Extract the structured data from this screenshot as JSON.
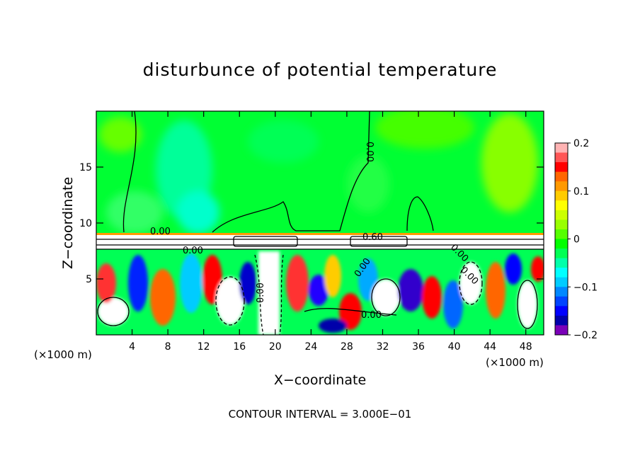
{
  "chart_data": {
    "type": "heatmap",
    "title": "disturbunce of potential temperature",
    "xlabel": "X−coordinate",
    "ylabel": "Z−coordinate",
    "x_unit": "(×1000 m)",
    "x_unit_right": "(×1000 m)",
    "footer": "CONTOUR INTERVAL = 3.000E−01",
    "x_ticks": [
      "4",
      "8",
      "12",
      "16",
      "20",
      "24",
      "28",
      "32",
      "36",
      "40",
      "44",
      "48"
    ],
    "x_tick_values": [
      4,
      8,
      12,
      16,
      20,
      24,
      28,
      32,
      36,
      40,
      44,
      48
    ],
    "y_ticks": [
      "5",
      "10",
      "15"
    ],
    "y_tick_values": [
      5,
      10,
      15
    ],
    "xlim": [
      0,
      50
    ],
    "ylim": [
      0,
      20
    ],
    "colorbar": {
      "ticks": [
        "0.2",
        "0.1",
        "0",
        "−0.1",
        "−0.2"
      ],
      "tick_values": [
        0.2,
        0.1,
        0,
        -0.1,
        -0.2
      ],
      "range": [
        -0.2,
        0.2
      ],
      "colors": [
        "#ffb3b3",
        "#ff5555",
        "#ff0000",
        "#ff6600",
        "#ff9900",
        "#ffcc00",
        "#ffff00",
        "#ccff00",
        "#99ff00",
        "#55ff00",
        "#00ff00",
        "#00ff55",
        "#00ffaa",
        "#00ffff",
        "#00ccff",
        "#0088ff",
        "#0044ff",
        "#0000ff",
        "#0000aa",
        "#7a00b8"
      ]
    },
    "contour_labels": [
      "0.00",
      "0.00",
      "0.00",
      "0.60",
      "0.00",
      "0.00",
      "0.00",
      "0.00",
      "0.00"
    ],
    "contour_interval": 0.3
  }
}
